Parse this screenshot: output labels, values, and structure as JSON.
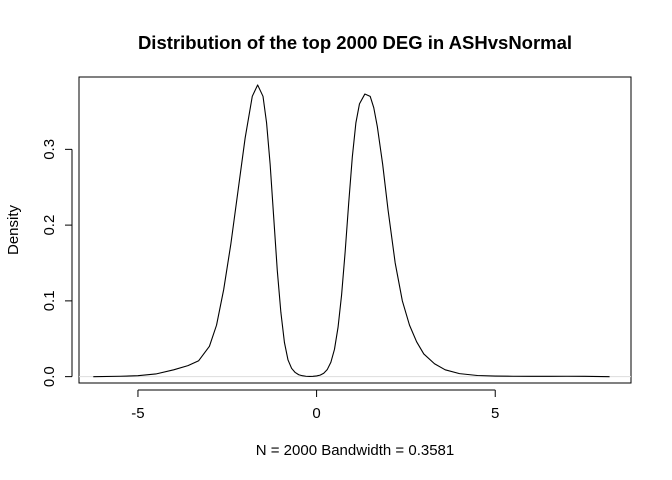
{
  "chart_data": {
    "type": "line",
    "title": "Distribution of the top 2000 DEG in ASHvsNormal",
    "xlabel": "N = 2000   Bandwidth = 0.3581",
    "ylabel": "Density",
    "xlim": [
      -6.65,
      8.8
    ],
    "ylim": [
      -0.0084,
      0.3955
    ],
    "x_ticks": [
      -5,
      0,
      5
    ],
    "x_tick_labels": [
      "-5",
      "0",
      "5"
    ],
    "y_ticks": [
      0.0,
      0.1,
      0.2,
      0.3
    ],
    "y_tick_labels": [
      "0.0",
      "0.1",
      "0.2",
      "0.3"
    ],
    "grid": false,
    "legend": "none",
    "zero_line": true,
    "line_color": "#000000",
    "zero_line_color": "#dddddd",
    "series": [
      {
        "x": [
          -6.25,
          -5.5,
          -5.0,
          -4.5,
          -4.0,
          -3.6,
          -3.3,
          -3.0,
          -2.8,
          -2.6,
          -2.4,
          -2.2,
          -2.0,
          -1.8,
          -1.65,
          -1.5,
          -1.4,
          -1.3,
          -1.2,
          -1.1,
          -1.0,
          -0.9,
          -0.8,
          -0.7,
          -0.6,
          -0.5,
          -0.4,
          -0.3,
          -0.2,
          -0.1,
          0.0,
          0.1,
          0.2,
          0.3,
          0.4,
          0.5,
          0.6,
          0.7,
          0.8,
          0.9,
          1.0,
          1.1,
          1.2,
          1.35,
          1.5,
          1.6,
          1.7,
          1.85,
          2.0,
          2.2,
          2.4,
          2.6,
          2.8,
          3.0,
          3.3,
          3.6,
          4.0,
          4.5,
          5.0,
          5.5,
          6.0,
          6.5,
          7.0,
          7.5,
          8.2
        ],
        "y": [
          0.0,
          0.0005,
          0.0012,
          0.0035,
          0.009,
          0.0145,
          0.021,
          0.04,
          0.068,
          0.115,
          0.175,
          0.245,
          0.315,
          0.37,
          0.385,
          0.37,
          0.335,
          0.28,
          0.21,
          0.14,
          0.085,
          0.045,
          0.022,
          0.011,
          0.0055,
          0.0025,
          0.0012,
          0.0005,
          0.0003,
          0.0004,
          0.0009,
          0.002,
          0.0045,
          0.0095,
          0.019,
          0.036,
          0.065,
          0.108,
          0.165,
          0.23,
          0.29,
          0.335,
          0.36,
          0.373,
          0.37,
          0.355,
          0.33,
          0.28,
          0.22,
          0.15,
          0.1,
          0.068,
          0.046,
          0.03,
          0.017,
          0.009,
          0.004,
          0.0015,
          0.0008,
          0.0005,
          0.0004,
          0.0004,
          0.0005,
          0.0004,
          0.0
        ]
      }
    ]
  }
}
